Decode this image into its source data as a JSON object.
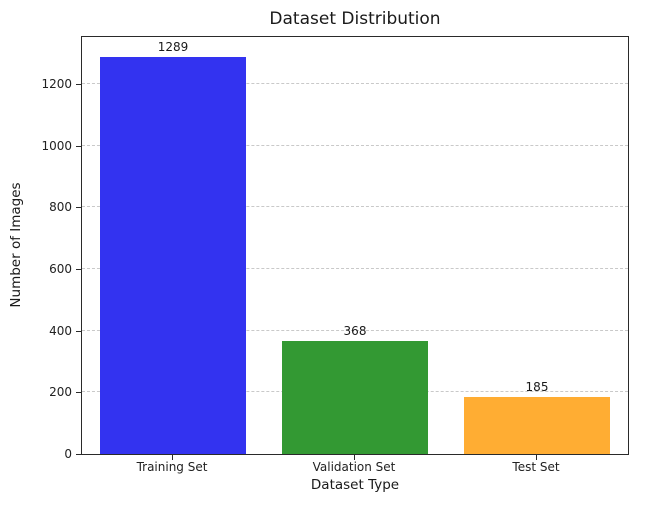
{
  "chart_data": {
    "type": "bar",
    "title": "Dataset Distribution",
    "xlabel": "Dataset Type",
    "ylabel": "Number of Images",
    "categories": [
      "Training Set",
      "Validation Set",
      "Test Set"
    ],
    "values": [
      1289,
      368,
      185
    ],
    "bar_colors": [
      "#3333f0",
      "#339933",
      "#ffad33"
    ],
    "yticks": [
      0,
      200,
      400,
      600,
      800,
      1000,
      1200
    ],
    "ylim": [
      0,
      1353
    ],
    "grid": "horizontal-dashed",
    "grid_color": "#c9c9c9",
    "legend": "none",
    "background": "#ffffff"
  }
}
